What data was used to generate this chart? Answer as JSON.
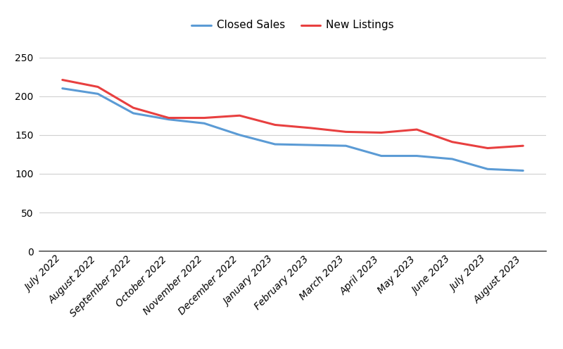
{
  "categories": [
    "July 2022",
    "August 2022",
    "September 2022",
    "October 2022",
    "November 2022",
    "December 2022",
    "January 2023",
    "February 2023",
    "March 2023",
    "April 2023",
    "May 2023",
    "June 2023",
    "July 2023",
    "August 2023"
  ],
  "closed_sales": [
    210,
    203,
    178,
    170,
    165,
    150,
    138,
    137,
    136,
    123,
    123,
    119,
    106,
    104
  ],
  "new_listings": [
    221,
    212,
    185,
    172,
    172,
    175,
    163,
    159,
    154,
    153,
    157,
    141,
    133,
    136
  ],
  "closed_sales_color": "#5b9bd5",
  "new_listings_color": "#e84040",
  "background_color": "#ffffff",
  "grid_color": "#d0d0d0",
  "legend_labels": [
    "Closed Sales",
    "New Listings"
  ],
  "ylim": [
    0,
    270
  ],
  "yticks": [
    0,
    50,
    100,
    150,
    200,
    250
  ],
  "line_width": 2.2,
  "tick_label_fontsize": 10,
  "legend_fontsize": 11
}
